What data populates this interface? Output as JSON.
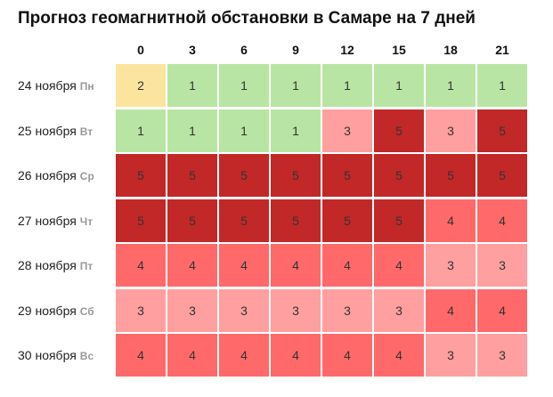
{
  "title": "Прогноз геомагнитной обстановки в Самаре на 7 дней",
  "columns": [
    0,
    3,
    6,
    9,
    12,
    15,
    18,
    21
  ],
  "colors": {
    "1": "#b8e5a3",
    "2": "#fbe49e",
    "3": "#ff9f9f",
    "4": "#ff6969",
    "5": "#c22828"
  },
  "rows": [
    {
      "date": "24 ноября",
      "weekday": "Пн",
      "values": [
        2,
        1,
        1,
        1,
        1,
        1,
        1,
        1
      ]
    },
    {
      "date": "25 ноября",
      "weekday": "Вт",
      "values": [
        1,
        1,
        1,
        1,
        3,
        5,
        3,
        5
      ]
    },
    {
      "date": "26 ноября",
      "weekday": "Ср",
      "values": [
        5,
        5,
        5,
        5,
        5,
        5,
        5,
        5
      ]
    },
    {
      "date": "27 ноября",
      "weekday": "Чт",
      "values": [
        5,
        5,
        5,
        5,
        5,
        5,
        4,
        4
      ]
    },
    {
      "date": "28 ноября",
      "weekday": "Пт",
      "values": [
        4,
        4,
        4,
        4,
        4,
        4,
        3,
        3
      ]
    },
    {
      "date": "29 ноября",
      "weekday": "Сб",
      "values": [
        3,
        3,
        3,
        3,
        3,
        3,
        4,
        4
      ]
    },
    {
      "date": "30 ноября",
      "weekday": "Вс",
      "values": [
        4,
        4,
        4,
        4,
        4,
        4,
        3,
        3
      ]
    }
  ]
}
